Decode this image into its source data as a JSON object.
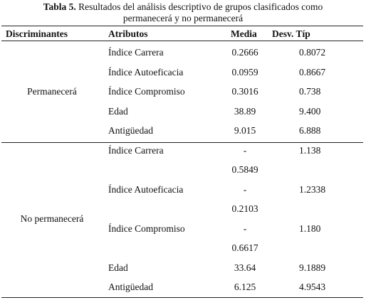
{
  "caption": {
    "label": "Tabla 5.",
    "text": "Resultados del análisis descriptivo de grupos clasificados como permanecerá y no permanecerá"
  },
  "table": {
    "header": [
      "Discriminantes",
      "Atributos",
      "Media",
      "Desv. Típ"
    ],
    "groups": [
      {
        "name": "Permanecerá",
        "rows": [
          [
            "Índice Carrera",
            "0.2666",
            "0.8072"
          ],
          [
            "Índice Autoeficacia",
            "0.0959",
            "0.8667"
          ],
          [
            "Índice Compromiso",
            "0.3016",
            "0.738"
          ],
          [
            "Edad",
            "38.89",
            "9.400"
          ],
          [
            "Antigüedad",
            "9.015",
            "6.888"
          ]
        ]
      },
      {
        "name": "No permanecerá",
        "rows": [
          [
            "Índice Carrera",
            "-\n0.5849",
            "1.138"
          ],
          [
            "Índice Autoeficacia",
            "-\n0.2103",
            "1.2338"
          ],
          [
            "Índice Compromiso",
            "-\n0.6617",
            "1.180"
          ],
          [
            "Edad",
            "33.64",
            "9.1889"
          ],
          [
            "Antigüedad",
            "6.125",
            "4.9543"
          ]
        ]
      }
    ]
  }
}
